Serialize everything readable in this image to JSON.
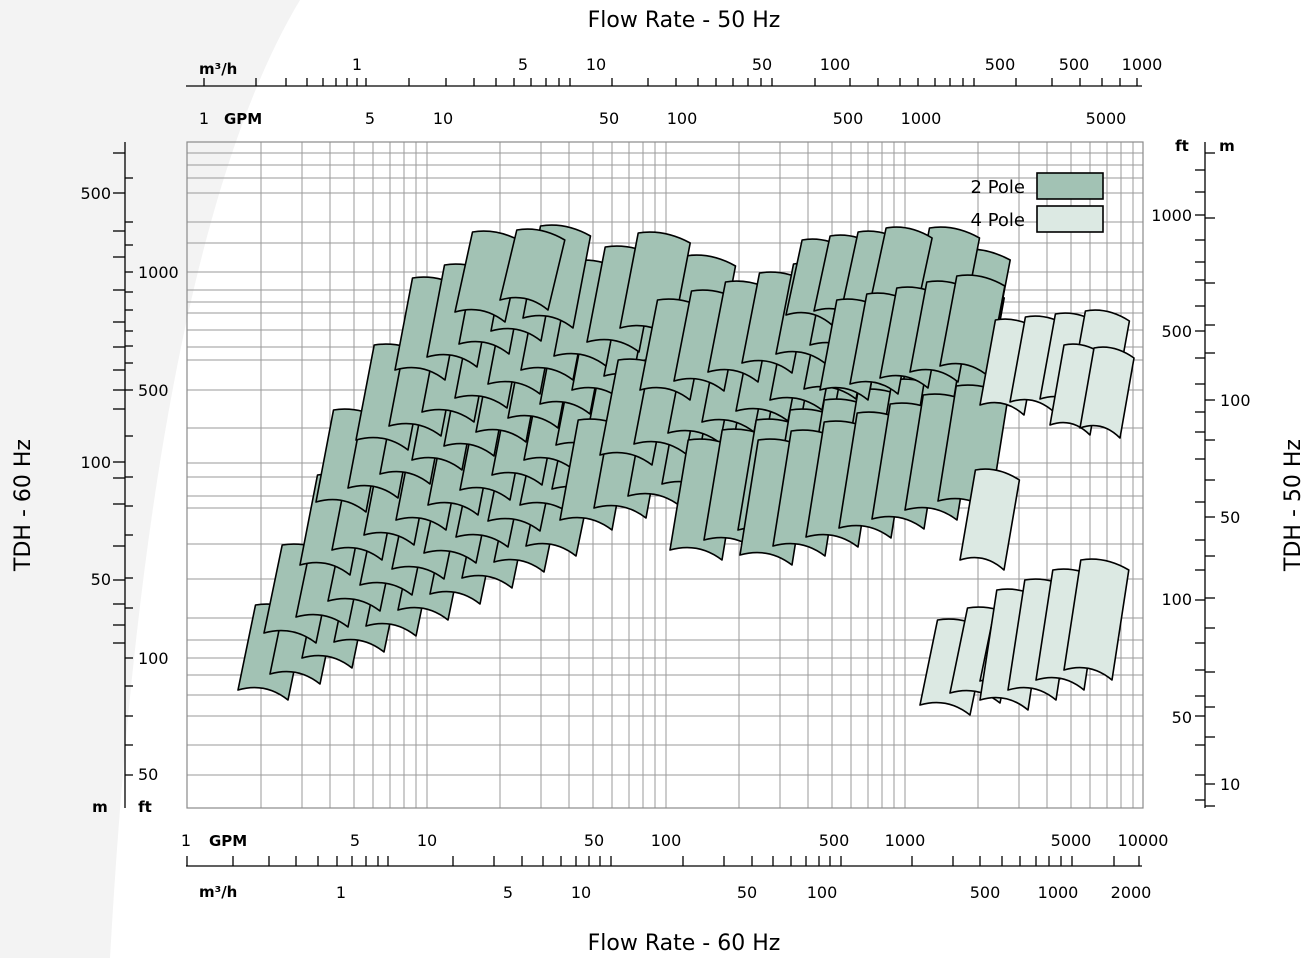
{
  "chart_data": {
    "type": "area",
    "title_top": "Flow Rate - 50 Hz",
    "title_bottom": "Flow Rate - 60 Hz",
    "ylabel_left": "TDH - 60 Hz",
    "ylabel_right": "TDH - 50 Hz",
    "legend": [
      {
        "name": "2 Pole",
        "color": "#a2c2b4"
      },
      {
        "name": "4 Pole",
        "color": "#dce9e3"
      }
    ],
    "top_m3h": {
      "unit": "m³/h",
      "labels": [
        "1",
        "5",
        "10",
        "50",
        "100",
        "500",
        "500",
        "1000"
      ]
    },
    "top_gpm": {
      "lead": "1",
      "unit": "GPM",
      "labels": [
        "5",
        "10",
        "50",
        "100",
        "500",
        "1000",
        "5000"
      ]
    },
    "bottom_gpm": {
      "lead": "1",
      "unit": "GPM",
      "labels": [
        "5",
        "10",
        "50",
        "100",
        "500",
        "1000",
        "5000",
        "10000"
      ]
    },
    "bottom_m3h": {
      "unit": "m³/h",
      "labels": [
        "1",
        "5",
        "10",
        "50",
        "100",
        "500",
        "1000",
        "2000"
      ]
    },
    "left_m": {
      "unit": "m",
      "labels": [
        "500",
        "100",
        "50"
      ]
    },
    "left_ft": {
      "unit": "ft",
      "labels": [
        "1000",
        "500",
        "100",
        "50"
      ]
    },
    "right_ft": {
      "unit": "ft",
      "labels": [
        "1000",
        "500",
        "100",
        "50"
      ]
    },
    "right_m": {
      "unit": "m",
      "labels": [
        "100",
        "50",
        "10"
      ]
    },
    "x_range_gpm": [
      1,
      10000
    ],
    "pole2_patches": 125,
    "pole4_patches": 15,
    "grid": true,
    "legend_position": "top-right"
  }
}
